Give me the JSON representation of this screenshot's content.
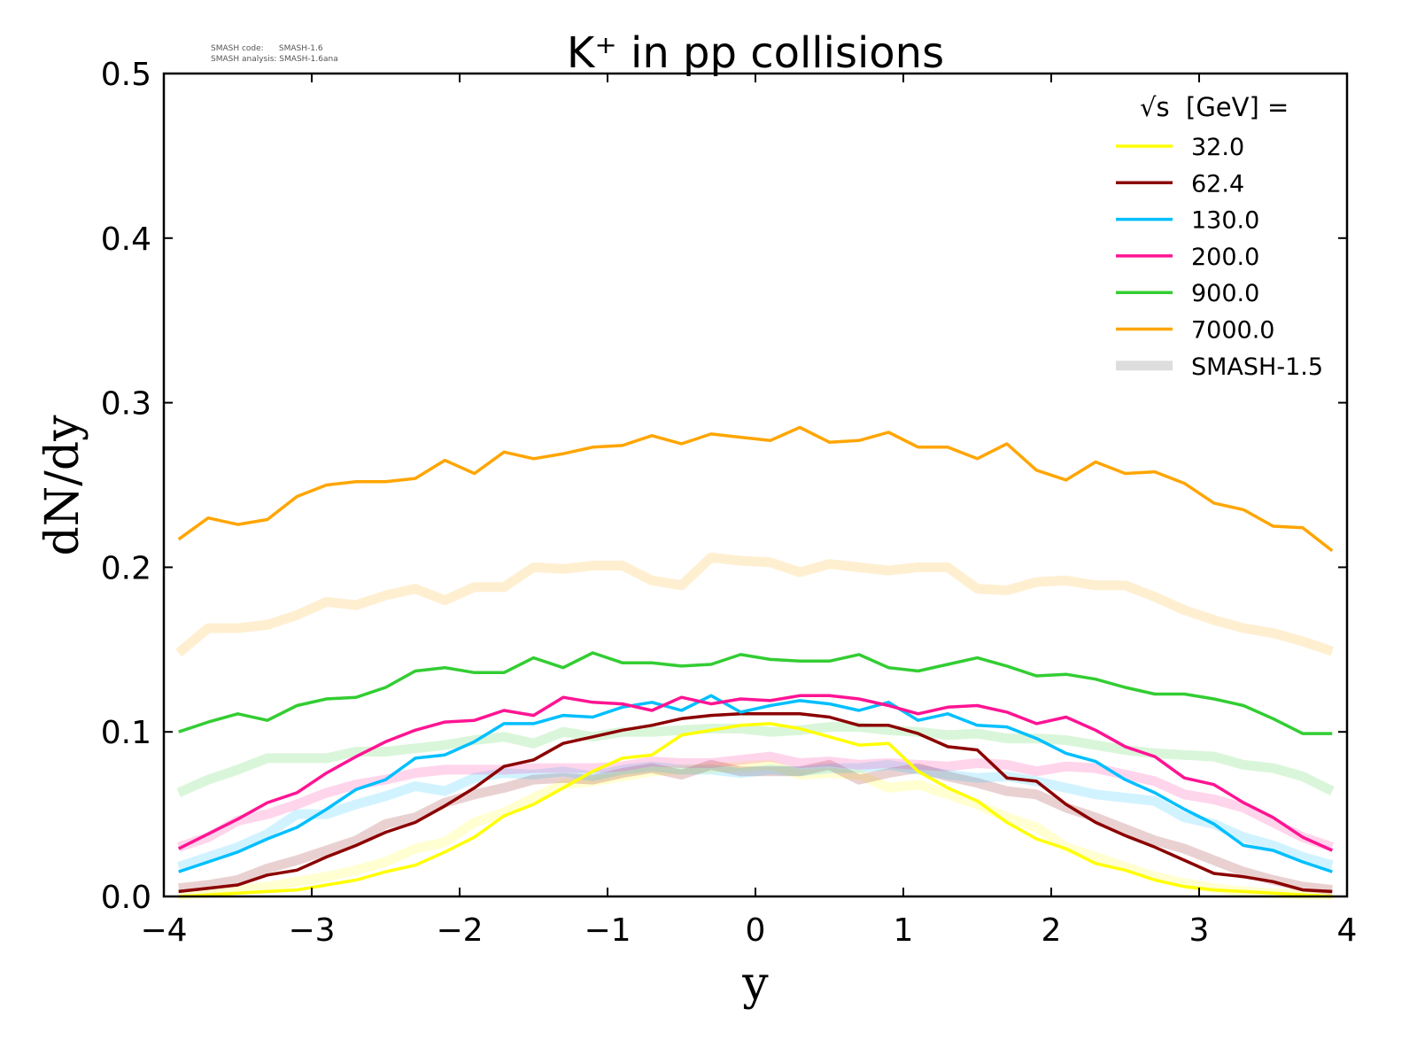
{
  "chart_data": {
    "type": "line",
    "title": "K⁺ in pp collisions",
    "xlabel": "y",
    "ylabel": "dN/dy",
    "xlim": [
      -4,
      4
    ],
    "ylim": [
      0,
      0.5
    ],
    "xticks": [
      -4,
      -3,
      -2,
      -1,
      0,
      1,
      2,
      3,
      4
    ],
    "xtick_labels": [
      "−4",
      "−3",
      "−2",
      "−1",
      "0",
      "1",
      "2",
      "3",
      "4"
    ],
    "yticks": [
      0,
      0.1,
      0.2,
      0.3,
      0.4,
      0.5
    ],
    "ytick_labels": [
      "0.0",
      "0.1",
      "0.2",
      "0.3",
      "0.4",
      "0.5"
    ],
    "grid": false,
    "legend_placement": "top-right",
    "legend_title": "√s  [GeV] =",
    "version_info": [
      "SMASH code:      SMASH-1.6",
      "SMASH analysis: SMASH-1.6ana"
    ],
    "x": [
      -3.9,
      -3.7,
      -3.5,
      -3.3,
      -3.1,
      -2.9,
      -2.7,
      -2.5,
      -2.3,
      -2.1,
      -1.9,
      -1.7,
      -1.5,
      -1.3,
      -1.1,
      -0.9,
      -0.7,
      -0.5,
      -0.3,
      -0.1,
      0.1,
      0.3,
      0.5,
      0.7,
      0.9,
      1.1,
      1.3,
      1.5,
      1.7,
      1.9,
      2.1,
      2.3,
      2.5,
      2.7,
      2.9,
      3.1,
      3.3,
      3.5,
      3.7,
      3.9
    ],
    "series": [
      {
        "name": "32.0",
        "color": "#ffff00",
        "values": [
          0.0,
          0.001,
          0.002,
          0.003,
          0.004,
          0.007,
          0.01,
          0.015,
          0.019,
          0.027,
          0.036,
          0.049,
          0.056,
          0.066,
          0.076,
          0.084,
          0.086,
          0.098,
          0.101,
          0.104,
          0.105,
          0.102,
          0.097,
          0.092,
          0.093,
          0.076,
          0.066,
          0.058,
          0.045,
          0.035,
          0.029,
          0.02,
          0.016,
          0.01,
          0.006,
          0.004,
          0.003,
          0.002,
          0.001,
          0.0
        ],
        "reference_values": [
          0.001,
          0.002,
          0.004,
          0.006,
          0.009,
          0.012,
          0.016,
          0.021,
          0.029,
          0.033,
          0.045,
          0.051,
          0.06,
          0.068,
          0.07,
          0.073,
          0.076,
          0.077,
          0.078,
          0.079,
          0.08,
          0.074,
          0.075,
          0.074,
          0.066,
          0.068,
          0.062,
          0.056,
          0.048,
          0.042,
          0.03,
          0.024,
          0.018,
          0.012,
          0.008,
          0.005,
          0.003,
          0.002,
          0.001,
          0.001
        ]
      },
      {
        "name": "62.4",
        "color": "#8b0000",
        "values": [
          0.003,
          0.005,
          0.007,
          0.013,
          0.016,
          0.024,
          0.031,
          0.039,
          0.045,
          0.055,
          0.066,
          0.079,
          0.083,
          0.093,
          0.097,
          0.101,
          0.104,
          0.108,
          0.11,
          0.111,
          0.111,
          0.111,
          0.109,
          0.104,
          0.104,
          0.099,
          0.091,
          0.089,
          0.072,
          0.07,
          0.056,
          0.045,
          0.037,
          0.03,
          0.022,
          0.014,
          0.012,
          0.009,
          0.004,
          0.003
        ],
        "reference_values": [
          0.005,
          0.007,
          0.01,
          0.017,
          0.022,
          0.028,
          0.034,
          0.044,
          0.048,
          0.057,
          0.062,
          0.066,
          0.071,
          0.072,
          0.071,
          0.075,
          0.078,
          0.074,
          0.08,
          0.076,
          0.076,
          0.076,
          0.08,
          0.071,
          0.075,
          0.078,
          0.073,
          0.069,
          0.064,
          0.062,
          0.054,
          0.048,
          0.041,
          0.034,
          0.029,
          0.022,
          0.015,
          0.01,
          0.006,
          0.004
        ]
      },
      {
        "name": "130.0",
        "color": "#00bfff",
        "values": [
          0.015,
          0.021,
          0.027,
          0.035,
          0.042,
          0.053,
          0.065,
          0.071,
          0.084,
          0.086,
          0.094,
          0.105,
          0.105,
          0.11,
          0.109,
          0.115,
          0.118,
          0.113,
          0.122,
          0.112,
          0.116,
          0.119,
          0.117,
          0.113,
          0.118,
          0.107,
          0.111,
          0.104,
          0.103,
          0.096,
          0.087,
          0.082,
          0.071,
          0.063,
          0.053,
          0.044,
          0.031,
          0.028,
          0.021,
          0.015
        ],
        "reference_values": [
          0.018,
          0.024,
          0.03,
          0.038,
          0.05,
          0.05,
          0.056,
          0.061,
          0.067,
          0.064,
          0.072,
          0.075,
          0.074,
          0.076,
          0.073,
          0.077,
          0.079,
          0.077,
          0.077,
          0.075,
          0.077,
          0.076,
          0.078,
          0.078,
          0.08,
          0.077,
          0.074,
          0.072,
          0.073,
          0.07,
          0.066,
          0.062,
          0.06,
          0.058,
          0.048,
          0.044,
          0.036,
          0.031,
          0.024,
          0.019
        ]
      },
      {
        "name": "200.0",
        "color": "#ff1493",
        "values": [
          0.029,
          0.038,
          0.047,
          0.057,
          0.063,
          0.075,
          0.085,
          0.094,
          0.101,
          0.106,
          0.107,
          0.113,
          0.11,
          0.121,
          0.118,
          0.117,
          0.113,
          0.121,
          0.117,
          0.12,
          0.119,
          0.122,
          0.122,
          0.12,
          0.116,
          0.111,
          0.115,
          0.116,
          0.112,
          0.105,
          0.109,
          0.101,
          0.091,
          0.085,
          0.072,
          0.068,
          0.057,
          0.048,
          0.036,
          0.028
        ],
        "reference_values": [
          0.03,
          0.036,
          0.046,
          0.05,
          0.056,
          0.063,
          0.068,
          0.071,
          0.075,
          0.077,
          0.077,
          0.077,
          0.078,
          0.078,
          0.078,
          0.079,
          0.082,
          0.081,
          0.081,
          0.083,
          0.085,
          0.081,
          0.082,
          0.08,
          0.081,
          0.08,
          0.079,
          0.081,
          0.08,
          0.076,
          0.079,
          0.078,
          0.074,
          0.07,
          0.062,
          0.059,
          0.054,
          0.045,
          0.036,
          0.03
        ]
      },
      {
        "name": "900.0",
        "color": "#32cd32",
        "values": [
          0.1,
          0.106,
          0.111,
          0.107,
          0.116,
          0.12,
          0.121,
          0.127,
          0.137,
          0.139,
          0.136,
          0.136,
          0.145,
          0.139,
          0.148,
          0.142,
          0.142,
          0.14,
          0.141,
          0.147,
          0.144,
          0.143,
          0.143,
          0.147,
          0.139,
          0.137,
          0.141,
          0.145,
          0.14,
          0.134,
          0.135,
          0.132,
          0.127,
          0.123,
          0.123,
          0.12,
          0.116,
          0.108,
          0.099,
          0.099
        ],
        "reference_values": [
          0.063,
          0.071,
          0.077,
          0.084,
          0.084,
          0.084,
          0.088,
          0.088,
          0.09,
          0.092,
          0.095,
          0.097,
          0.093,
          0.1,
          0.097,
          0.1,
          0.1,
          0.101,
          0.102,
          0.102,
          0.1,
          0.101,
          0.103,
          0.103,
          0.101,
          0.1,
          0.098,
          0.099,
          0.096,
          0.096,
          0.095,
          0.092,
          0.089,
          0.087,
          0.086,
          0.085,
          0.08,
          0.078,
          0.073,
          0.064
        ]
      },
      {
        "name": "7000.0",
        "color": "#ffa500",
        "values": [
          0.217,
          0.23,
          0.226,
          0.229,
          0.243,
          0.25,
          0.252,
          0.252,
          0.254,
          0.265,
          0.257,
          0.27,
          0.266,
          0.269,
          0.273,
          0.274,
          0.28,
          0.275,
          0.281,
          0.279,
          0.277,
          0.285,
          0.276,
          0.277,
          0.282,
          0.273,
          0.273,
          0.266,
          0.275,
          0.259,
          0.253,
          0.264,
          0.257,
          0.258,
          0.251,
          0.239,
          0.235,
          0.225,
          0.224,
          0.21
        ],
        "reference_values": [
          0.148,
          0.163,
          0.163,
          0.165,
          0.171,
          0.179,
          0.177,
          0.183,
          0.187,
          0.18,
          0.188,
          0.188,
          0.2,
          0.199,
          0.201,
          0.201,
          0.192,
          0.189,
          0.206,
          0.204,
          0.203,
          0.197,
          0.202,
          0.2,
          0.198,
          0.2,
          0.2,
          0.187,
          0.186,
          0.191,
          0.192,
          0.189,
          0.189,
          0.182,
          0.174,
          0.168,
          0.163,
          0.16,
          0.155,
          0.149
        ]
      }
    ],
    "reference_legend": {
      "name": "SMASH-1.5",
      "color": "#dddddd"
    }
  }
}
